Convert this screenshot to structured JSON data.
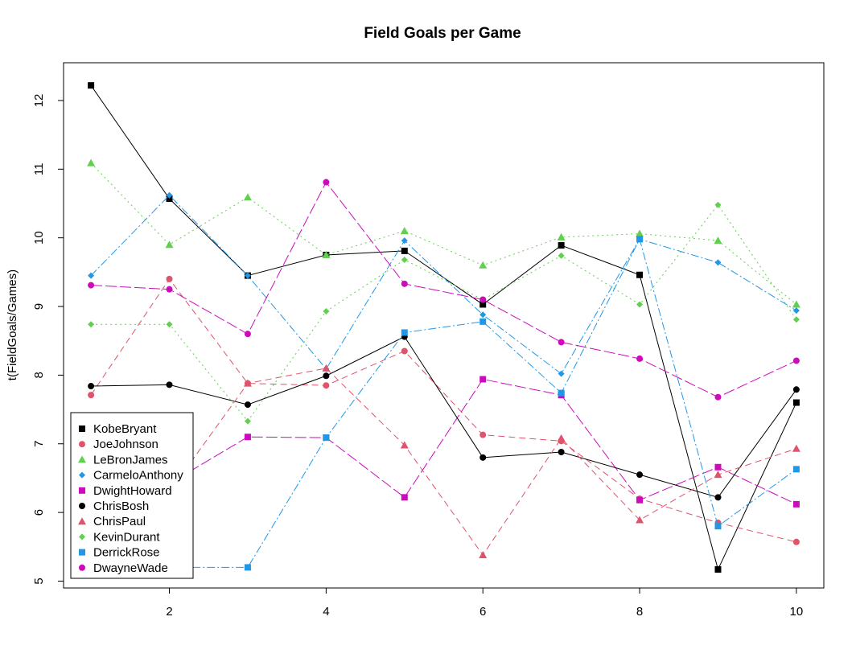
{
  "chart_data": {
    "type": "line",
    "title": "Field Goals per Game",
    "xlabel": "",
    "ylabel": "t(FieldGoals/Games)",
    "xlim": [
      0.65,
      10.35
    ],
    "ylim": [
      4.9,
      12.55
    ],
    "x_ticks": [
      2,
      4,
      6,
      8,
      10
    ],
    "y_ticks": [
      5,
      6,
      7,
      8,
      9,
      10,
      11,
      12
    ],
    "x": [
      1,
      2,
      3,
      4,
      5,
      6,
      7,
      8,
      9,
      10
    ],
    "grid": false,
    "legend_position": "bottom-left",
    "series": [
      {
        "name": "KobeBryant",
        "color": "#000000",
        "marker": "square",
        "dash": "",
        "values": [
          12.22,
          10.57,
          9.45,
          9.75,
          9.81,
          9.03,
          9.89,
          9.46,
          5.17,
          7.6
        ]
      },
      {
        "name": "JoeJohnson",
        "color": "#DF536B",
        "marker": "circle",
        "dash": "8,5",
        "values": [
          7.71,
          9.4,
          7.88,
          7.85,
          8.35,
          7.13,
          7.04,
          6.2,
          5.85,
          5.57
        ]
      },
      {
        "name": "LeBronJames",
        "color": "#61D04F",
        "marker": "triangle",
        "dash": "2,4",
        "values": [
          11.09,
          9.9,
          10.59,
          9.75,
          10.1,
          9.6,
          10.01,
          10.06,
          9.96,
          9.03
        ]
      },
      {
        "name": "CarmeloAnthony",
        "color": "#2297E6",
        "marker": "diamond",
        "dash": "10,3,2,3",
        "values": [
          9.45,
          10.62,
          9.45,
          8.09,
          9.96,
          8.88,
          8.02,
          9.98,
          9.64,
          8.94
        ]
      },
      {
        "name": "DwightHoward",
        "color": "#CD0BBC",
        "marker": "square",
        "dash": "14,4",
        "values": [
          6.32,
          6.42,
          7.1,
          7.09,
          6.22,
          7.94,
          7.71,
          6.18,
          6.66,
          6.12
        ]
      },
      {
        "name": "ChrisBosh",
        "color": "#000000",
        "marker": "circle",
        "dash": "",
        "values": [
          7.84,
          7.86,
          7.57,
          7.99,
          8.56,
          6.8,
          6.88,
          6.55,
          6.22,
          7.79
        ]
      },
      {
        "name": "ChrisPaul",
        "color": "#DF536B",
        "marker": "triangle",
        "dash": "8,5",
        "values": [
          6.25,
          6.3,
          7.88,
          8.1,
          6.98,
          5.38,
          7.08,
          5.89,
          6.55,
          6.93
        ]
      },
      {
        "name": "KevinDurant",
        "color": "#61D04F",
        "marker": "diamond",
        "dash": "2,4",
        "values": [
          8.74,
          8.74,
          7.33,
          8.93,
          9.68,
          9.1,
          9.74,
          9.03,
          10.48,
          8.81
        ]
      },
      {
        "name": "DerrickRose",
        "color": "#2297E6",
        "marker": "square",
        "dash": "10,3,2,3",
        "values": [
          5.2,
          5.2,
          5.2,
          7.09,
          8.62,
          8.78,
          7.74,
          9.98,
          5.8,
          6.63
        ]
      },
      {
        "name": "DwayneWade",
        "color": "#CD0BBC",
        "marker": "circle",
        "dash": "14,4",
        "values": [
          9.31,
          9.25,
          8.6,
          10.81,
          9.33,
          9.1,
          8.48,
          8.24,
          7.68,
          8.21
        ]
      }
    ]
  }
}
